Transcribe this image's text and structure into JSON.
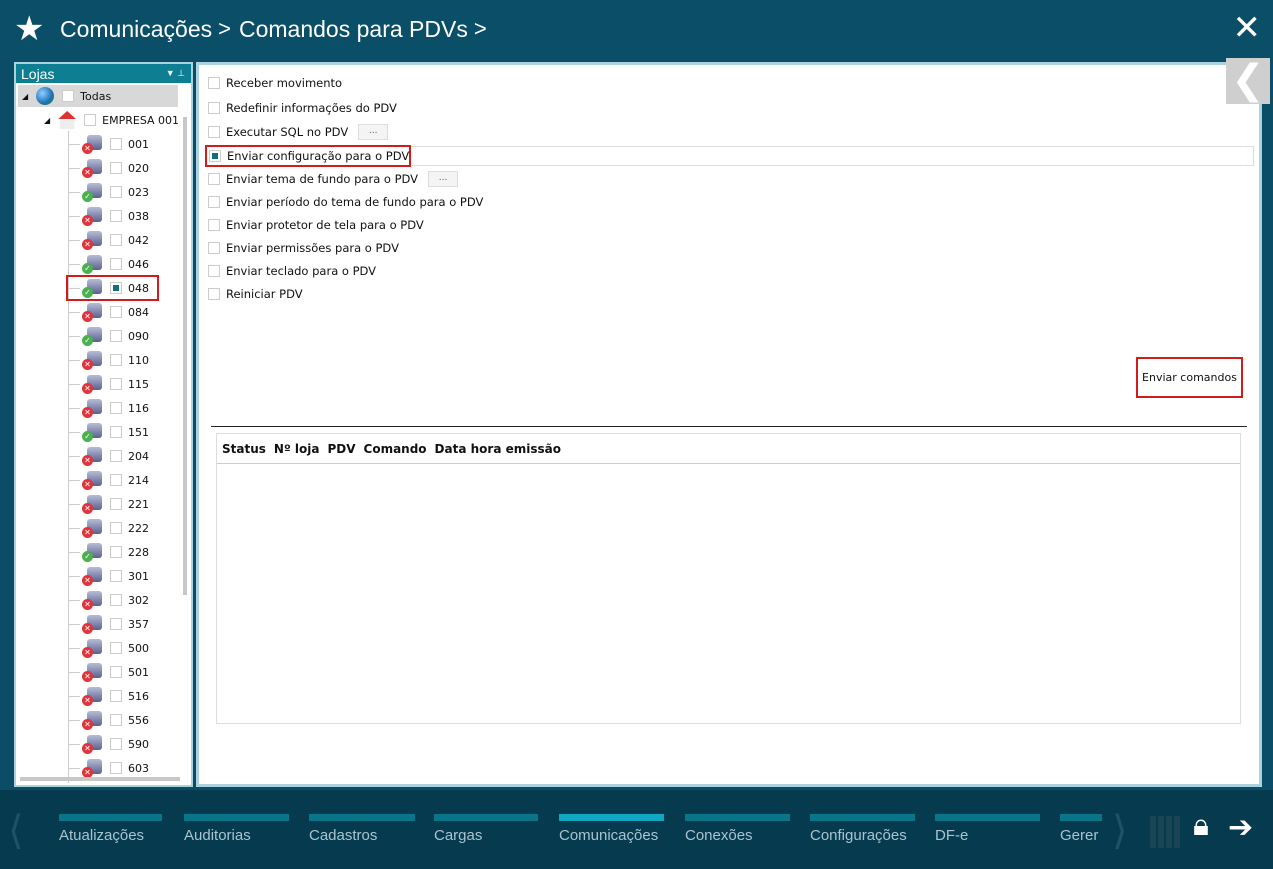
{
  "header": {
    "breadcrumb": [
      "Comunicações",
      "Comandos para PDVs"
    ],
    "separator": ">",
    "star_icon": "star-icon",
    "close_icon": "close-icon"
  },
  "stores_panel": {
    "title": "Lojas",
    "root": {
      "label": "Todas",
      "checked": false
    },
    "company": {
      "label": "EMPRESA 001",
      "checked": false
    },
    "stores": [
      {
        "label": "001",
        "status": "error"
      },
      {
        "label": "020",
        "status": "error"
      },
      {
        "label": "023",
        "status": "ok"
      },
      {
        "label": "038",
        "status": "error"
      },
      {
        "label": "042",
        "status": "error"
      },
      {
        "label": "046",
        "status": "ok"
      },
      {
        "label": "048",
        "status": "ok",
        "checked": true
      },
      {
        "label": "084",
        "status": "error"
      },
      {
        "label": "090",
        "status": "ok"
      },
      {
        "label": "110",
        "status": "error"
      },
      {
        "label": "115",
        "status": "error"
      },
      {
        "label": "116",
        "status": "error"
      },
      {
        "label": "151",
        "status": "ok"
      },
      {
        "label": "204",
        "status": "error"
      },
      {
        "label": "214",
        "status": "error"
      },
      {
        "label": "221",
        "status": "error"
      },
      {
        "label": "222",
        "status": "error"
      },
      {
        "label": "228",
        "status": "ok"
      },
      {
        "label": "301",
        "status": "error"
      },
      {
        "label": "302",
        "status": "error"
      },
      {
        "label": "357",
        "status": "error"
      },
      {
        "label": "500",
        "status": "error"
      },
      {
        "label": "501",
        "status": "error"
      },
      {
        "label": "516",
        "status": "error"
      },
      {
        "label": "556",
        "status": "error"
      },
      {
        "label": "590",
        "status": "error"
      },
      {
        "label": "603",
        "status": "error"
      }
    ]
  },
  "commands": [
    {
      "label": "Receber movimento",
      "checked": false
    },
    {
      "label": "Redefinir informações do PDV",
      "checked": false
    },
    {
      "label": "Executar SQL no PDV",
      "checked": false,
      "browse": "..."
    },
    {
      "label": "Enviar configuração para o PDV",
      "checked": true
    },
    {
      "label": "Enviar tema de fundo para o PDV",
      "checked": false,
      "browse": "..."
    },
    {
      "label": "Enviar período do tema de fundo para o PDV",
      "checked": false
    },
    {
      "label": "Enviar protetor de tela para o PDV",
      "checked": false
    },
    {
      "label": "Enviar permissões para o PDV",
      "checked": false
    },
    {
      "label": "Enviar teclado para o PDV",
      "checked": false
    },
    {
      "label": "Reiniciar PDV",
      "checked": false
    }
  ],
  "send_button": "Enviar comandos",
  "results_table": {
    "columns": [
      "Status",
      "Nº loja",
      "PDV",
      "Comando",
      "Data hora emissão"
    ],
    "rows": []
  },
  "bottom_nav": {
    "items": [
      "Atualizações",
      "Auditorias",
      "Cadastros",
      "Cargas",
      "Comunicações",
      "Conexões",
      "Configurações",
      "DF-e",
      "Gerer"
    ],
    "active": "Comunicações"
  },
  "colors": {
    "header": "#0b4e68",
    "accent": "#0e7f93",
    "highlight": "#d01c1c",
    "ok": "#4caf50",
    "error": "#d9363e"
  }
}
